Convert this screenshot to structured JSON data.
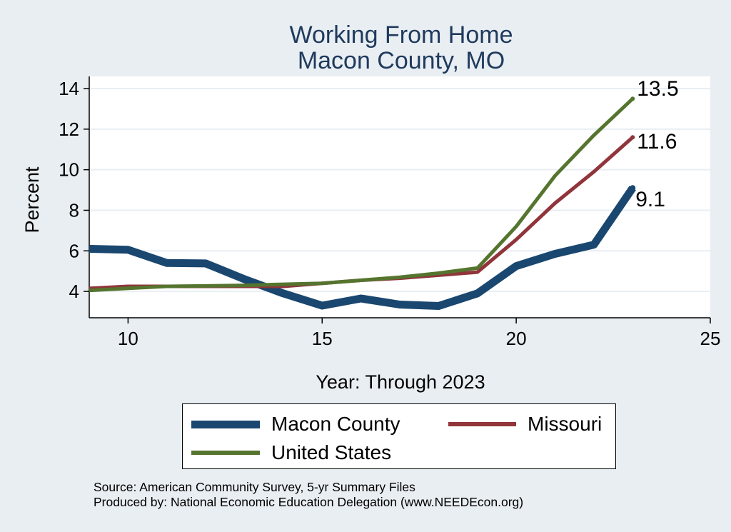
{
  "chart_data": {
    "type": "line",
    "title": "Working From Home",
    "subtitle": "Macon County, MO",
    "xlabel": "Year: Through 2023",
    "ylabel": "Percent",
    "xlim": [
      9,
      25
    ],
    "ylim": [
      2.7,
      14.6
    ],
    "xticks": [
      10,
      15,
      20,
      25
    ],
    "yticks": [
      4,
      6,
      8,
      10,
      12,
      14
    ],
    "grid": true,
    "legend_position": "bottom",
    "x": [
      9,
      10,
      11,
      12,
      13,
      14,
      15,
      16,
      17,
      18,
      19,
      20,
      21,
      22,
      23
    ],
    "series": [
      {
        "name": "Macon County",
        "color": "#1a476f",
        "values": [
          6.1,
          6.05,
          5.4,
          5.38,
          4.6,
          3.9,
          3.3,
          3.65,
          3.35,
          3.28,
          3.9,
          5.25,
          5.85,
          6.3,
          9.1
        ],
        "end_label": "9.1"
      },
      {
        "name": "Missouri",
        "color": "#90353b",
        "values": [
          4.15,
          4.25,
          4.25,
          4.25,
          4.25,
          4.25,
          4.4,
          4.55,
          4.65,
          4.8,
          4.95,
          6.55,
          8.35,
          9.9,
          11.6
        ],
        "end_label": "11.6"
      },
      {
        "name": "United States",
        "color": "#55752f",
        "values": [
          4.05,
          4.15,
          4.25,
          4.27,
          4.3,
          4.35,
          4.4,
          4.55,
          4.7,
          4.9,
          5.15,
          7.2,
          9.7,
          11.7,
          13.5
        ],
        "end_label": "13.5"
      }
    ]
  },
  "footer": {
    "source": "Source: American Community Survey, 5-yr Summary Files",
    "produced_by": "Produced by: National Economic Education Delegation (www.NEEDEcon.org)"
  }
}
